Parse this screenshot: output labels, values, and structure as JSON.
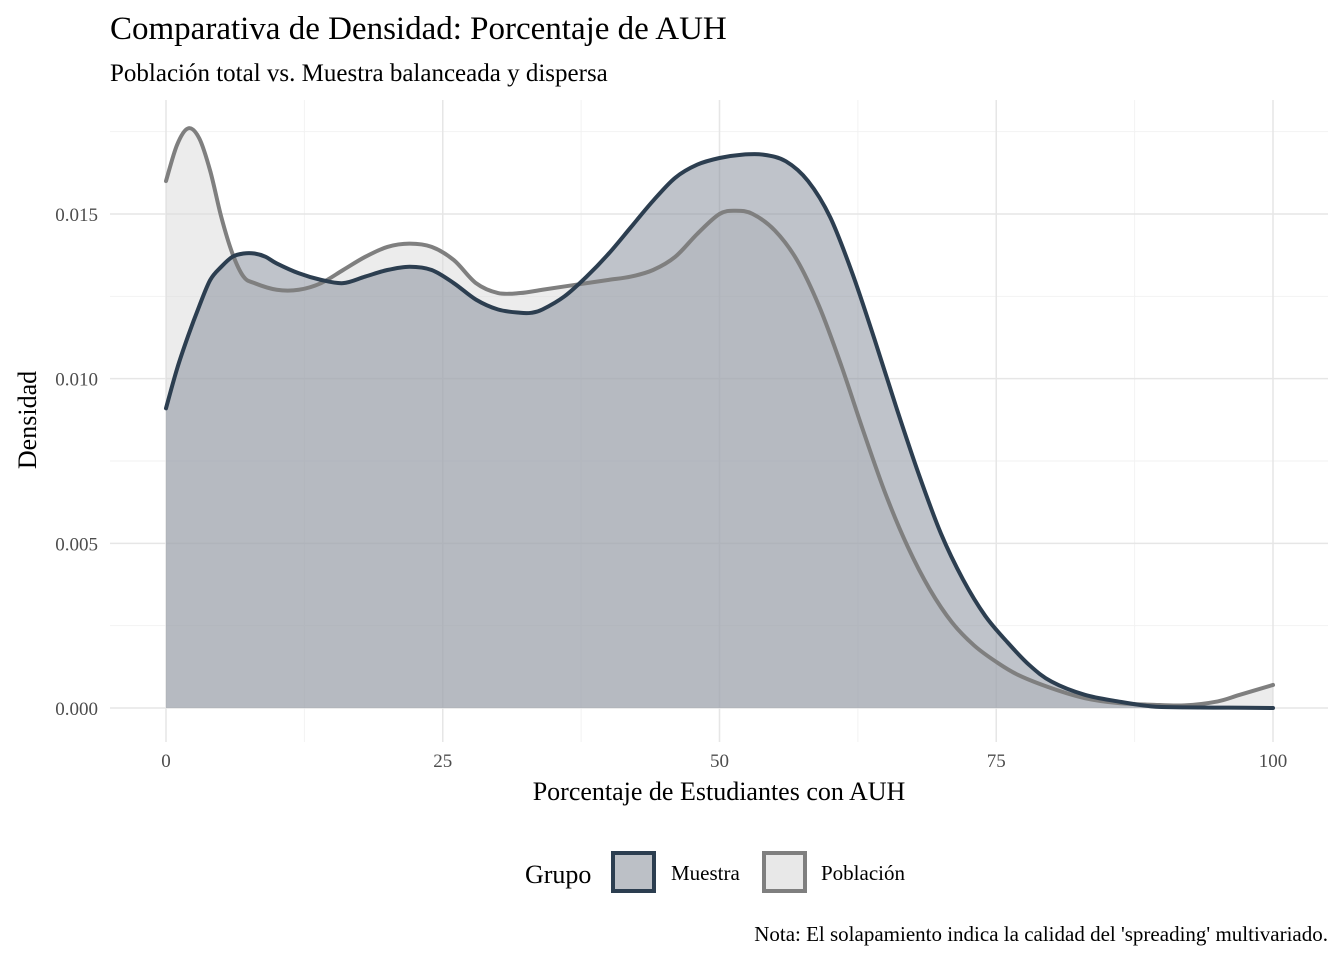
{
  "chart_data": {
    "type": "area",
    "title": "Comparativa de Densidad: Porcentaje de AUH",
    "subtitle": "Población total vs. Muestra balanceada y dispersa",
    "xlabel": "Porcentaje de Estudiantes con AUH",
    "ylabel": "Densidad",
    "caption": "Nota: El solapamiento indica la calidad del 'spreading' multivariado.",
    "xlim": [
      0,
      100
    ],
    "ylim": [
      0,
      0.018
    ],
    "x_ticks": [
      0,
      25,
      50,
      75,
      100
    ],
    "x_tick_labels": [
      "0",
      "25",
      "50",
      "75",
      "100"
    ],
    "y_ticks": [
      0,
      0.005,
      0.01,
      0.015
    ],
    "y_tick_labels": [
      "0.000",
      "0.005",
      "0.010",
      "0.015"
    ],
    "grid": true,
    "legend": {
      "title": "Grupo",
      "position": "bottom"
    },
    "series": [
      {
        "name": "Población",
        "line_color": "#7f7f7f",
        "fill_color": "#d9d9d9",
        "x": [
          0,
          1,
          2,
          3,
          4,
          5,
          6,
          7,
          8,
          10,
          12,
          14,
          16,
          18,
          20,
          22,
          24,
          26,
          28,
          30,
          32,
          34,
          36,
          38,
          40,
          42,
          44,
          46,
          48,
          50,
          51.5,
          53,
          55,
          57,
          59,
          61,
          63,
          65,
          67,
          69,
          71,
          73,
          75,
          77,
          80,
          83,
          86,
          89,
          92,
          95,
          97,
          100
        ],
        "y": [
          0.016,
          0.0171,
          0.0176,
          0.0173,
          0.0163,
          0.0149,
          0.0138,
          0.0131,
          0.0129,
          0.0127,
          0.0127,
          0.0129,
          0.0133,
          0.0137,
          0.014,
          0.0141,
          0.014,
          0.0136,
          0.0129,
          0.0126,
          0.0126,
          0.0127,
          0.0128,
          0.0129,
          0.013,
          0.0131,
          0.0133,
          0.0137,
          0.0144,
          0.015,
          0.0151,
          0.015,
          0.0145,
          0.0136,
          0.0122,
          0.0104,
          0.0084,
          0.0065,
          0.0049,
          0.0036,
          0.0026,
          0.0019,
          0.0014,
          0.001,
          0.0006,
          0.0003,
          0.00015,
          0.0001,
          8e-05,
          0.0002,
          0.0004,
          0.0007
        ]
      },
      {
        "name": "Muestra",
        "line_color": "#2c3e50",
        "fill_color": "#7f8896",
        "x": [
          0,
          1,
          2,
          3,
          4,
          5,
          6,
          7,
          8,
          9,
          10,
          12,
          14,
          16,
          18,
          20,
          22,
          24,
          26,
          28,
          30,
          32,
          33,
          34,
          36,
          38,
          40,
          42,
          44,
          46,
          48,
          50,
          52,
          54,
          56,
          58,
          60,
          62,
          64,
          66,
          68,
          70,
          72,
          74,
          76,
          78,
          80,
          83,
          86,
          89,
          92,
          96,
          100
        ],
        "y": [
          0.0091,
          0.0103,
          0.0113,
          0.0122,
          0.013,
          0.0134,
          0.0137,
          0.0138,
          0.0138,
          0.0137,
          0.0135,
          0.0132,
          0.013,
          0.0129,
          0.0131,
          0.0133,
          0.0134,
          0.0133,
          0.0129,
          0.0124,
          0.0121,
          0.012,
          0.012,
          0.0121,
          0.0125,
          0.0131,
          0.0138,
          0.0146,
          0.0154,
          0.0161,
          0.0165,
          0.0167,
          0.0168,
          0.0168,
          0.0166,
          0.016,
          0.0149,
          0.0132,
          0.0112,
          0.0091,
          0.0071,
          0.0053,
          0.0039,
          0.0028,
          0.002,
          0.0013,
          0.0008,
          0.0004,
          0.0002,
          5e-05,
          2e-05,
          1e-05,
          0
        ]
      }
    ]
  }
}
